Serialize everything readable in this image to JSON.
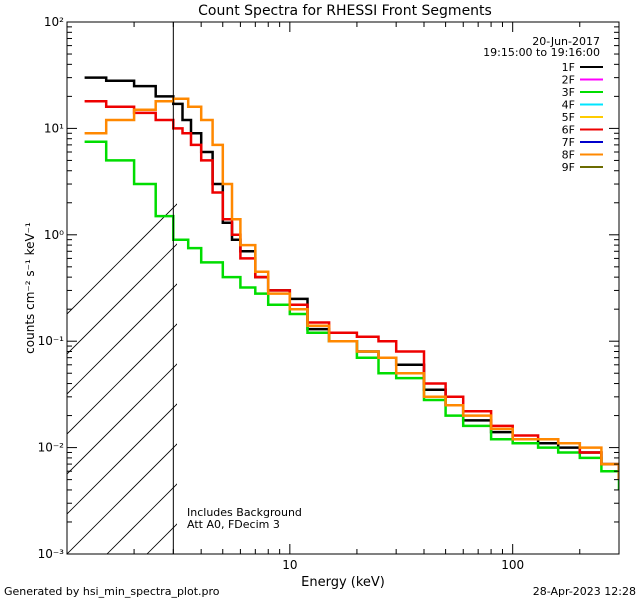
{
  "chart_data": {
    "type": "line",
    "title": "Count Spectra for RHESSI Front Segments",
    "xlabel": "Energy (keV)",
    "ylabel": "counts cm⁻² s⁻¹ keV⁻¹",
    "xscale": "log",
    "yscale": "log",
    "xlim": [
      1,
      300
    ],
    "ylim": [
      0.001,
      100
    ],
    "x_ticks": [
      "10",
      "100"
    ],
    "y_ticks": [
      "10⁻³",
      "10⁻²",
      "10⁻¹",
      "10⁰",
      "10¹",
      "10²"
    ],
    "date_label": "20-Jun-2017",
    "time_range_label": "19:15:00 to 19:16:00",
    "legend_position": "top-right",
    "legend": [
      {
        "label": "1F",
        "color": "#000000"
      },
      {
        "label": "2F",
        "color": "#ff00ff"
      },
      {
        "label": "3F",
        "color": "#00dd00"
      },
      {
        "label": "4F",
        "color": "#00e5ff"
      },
      {
        "label": "5F",
        "color": "#ffcc00"
      },
      {
        "label": "6F",
        "color": "#ee0000"
      },
      {
        "label": "7F",
        "color": "#0000cc"
      },
      {
        "label": "8F",
        "color": "#ff8800"
      },
      {
        "label": "9F",
        "color": "#6b6b00"
      }
    ],
    "hatched_region_keV": [
      1,
      3
    ],
    "annotation_line1": "Includes Background",
    "annotation_line2": "Att A0, FDecim 3",
    "series": [
      {
        "name": "1F",
        "color": "#000000",
        "x": [
          1.2,
          1.5,
          2.0,
          2.5,
          3.0,
          3.3,
          3.6,
          4.0,
          4.5,
          5.0,
          5.5,
          6.0,
          7.0,
          8.0,
          10.0,
          12.0,
          15.0,
          20.0,
          25.0,
          30.0,
          40.0,
          50.0,
          60.0,
          80.0,
          100.0,
          130.0,
          160.0,
          200.0,
          250.0,
          300.0
        ],
        "y": [
          30,
          28,
          25,
          20,
          17,
          12,
          9,
          6,
          3,
          1.3,
          0.9,
          0.7,
          0.4,
          0.3,
          0.25,
          0.13,
          0.1,
          0.08,
          0.07,
          0.06,
          0.035,
          0.025,
          0.018,
          0.014,
          0.012,
          0.011,
          0.01,
          0.009,
          0.007,
          0.005
        ]
      },
      {
        "name": "3F",
        "color": "#00dd00",
        "x": [
          1.2,
          1.5,
          2.0,
          2.5,
          3.0,
          3.5,
          4.0,
          5.0,
          6.0,
          7.0,
          8.0,
          10.0,
          12.0,
          15.0,
          20.0,
          25.0,
          30.0,
          40.0,
          50.0,
          60.0,
          80.0,
          100.0,
          130.0,
          160.0,
          200.0,
          250.0,
          300.0
        ],
        "y": [
          7.5,
          5,
          3,
          1.5,
          0.9,
          0.75,
          0.55,
          0.4,
          0.32,
          0.28,
          0.22,
          0.18,
          0.12,
          0.1,
          0.07,
          0.05,
          0.045,
          0.028,
          0.02,
          0.016,
          0.012,
          0.011,
          0.01,
          0.009,
          0.008,
          0.006,
          0.004
        ]
      },
      {
        "name": "6F",
        "color": "#ee0000",
        "x": [
          1.2,
          1.5,
          2.0,
          2.5,
          3.0,
          3.3,
          3.6,
          4.0,
          4.5,
          5.0,
          5.5,
          6.0,
          7.0,
          8.0,
          10.0,
          12.0,
          15.0,
          20.0,
          25.0,
          30.0,
          40.0,
          50.0,
          60.0,
          80.0,
          100.0,
          130.0,
          160.0,
          200.0,
          250.0,
          300.0
        ],
        "y": [
          18,
          16,
          14,
          12,
          10,
          9,
          7,
          5,
          2.5,
          1.4,
          1.0,
          0.6,
          0.4,
          0.3,
          0.22,
          0.15,
          0.12,
          0.11,
          0.1,
          0.08,
          0.04,
          0.03,
          0.022,
          0.016,
          0.013,
          0.012,
          0.011,
          0.009,
          0.007,
          0.005
        ]
      },
      {
        "name": "8F",
        "color": "#ff8800",
        "x": [
          1.2,
          1.5,
          2.0,
          2.5,
          3.0,
          3.5,
          4.0,
          4.5,
          5.0,
          5.5,
          6.0,
          7.0,
          8.0,
          10.0,
          12.0,
          15.0,
          20.0,
          25.0,
          30.0,
          40.0,
          50.0,
          60.0,
          80.0,
          100.0,
          130.0,
          160.0,
          200.0,
          250.0,
          300.0
        ],
        "y": [
          9,
          12,
          15,
          18,
          19,
          16,
          12,
          7,
          3,
          1.4,
          0.8,
          0.45,
          0.28,
          0.2,
          0.14,
          0.1,
          0.08,
          0.07,
          0.05,
          0.03,
          0.025,
          0.02,
          0.015,
          0.012,
          0.012,
          0.011,
          0.01,
          0.007,
          0.005
        ]
      }
    ]
  },
  "footer": {
    "generator": "Generated by hsi_min_spectra_plot.pro",
    "timestamp": "28-Apr-2023 12:28"
  }
}
